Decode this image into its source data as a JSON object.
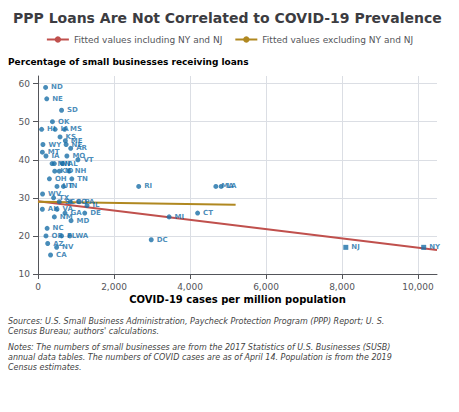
{
  "chart_data": {
    "type": "scatter",
    "title": "PPP Loans Are Not Correlated to COVID-19 Prevalence",
    "xlabel": "COVID-19 cases per million population",
    "ylabel": "Percentage of small businesses receiving loans",
    "annotations": [
      "Sources: U.S. Small Business Administration, Paycheck Protection Program (PPP) Report; U. S.\nCensus Bureau; authors' calculations.",
      "Notes: The numbers of small businesses are from the 2017 Statistics of U.S. Businesses (SUSB)\nannual data tables. The numbers of COVID cases are as of April 14. Population is from the 2019\nCensus estimates."
    ],
    "xlim": [
      0,
      10500
    ],
    "ylim": [
      10,
      62
    ],
    "xticks": [
      0,
      {
        "value": 2000,
        "label": "2,000"
      },
      {
        "value": 4000,
        "label": "4,000"
      },
      {
        "value": 6000,
        "label": "6,000"
      },
      {
        "value": 8000,
        "label": "8,000"
      },
      {
        "value": 10000,
        "label": "10,000"
      }
    ],
    "yticks": [
      10,
      20,
      30,
      40,
      50,
      60
    ],
    "grid": true,
    "legend": "top",
    "series": [
      {
        "type": "scatter",
        "color": "#1a6fa8",
        "labels": [
          "ND",
          "NE",
          "SD",
          "OK",
          "HI",
          "IA",
          "MS",
          "KS",
          "ME",
          "WY",
          "NE",
          "AR",
          "MT",
          "MO",
          "IA",
          "VT",
          "MN",
          "WI",
          "AL",
          "KY",
          "ID",
          "NH",
          "OH",
          "TN",
          "IN",
          "UT",
          "RI",
          "MA",
          "LA",
          "WV",
          "TX",
          "SC",
          "CO",
          "PA",
          "IL",
          "AK",
          "VA",
          "GA",
          "DE",
          "CT",
          "MI",
          "NM",
          "MD",
          "NC",
          "DC",
          "OR",
          "FL",
          "WA",
          "NJ",
          "AZ",
          "NV",
          "NY",
          "CA"
        ],
        "markers": [
          "circle",
          "circle",
          "circle",
          "circle",
          "circle",
          "circle",
          "circle",
          "circle",
          "circle",
          "circle",
          "circle",
          "circle",
          "circle",
          "circle",
          "circle",
          "circle",
          "circle",
          "circle",
          "circle",
          "circle",
          "circle",
          "circle",
          "circle",
          "circle",
          "circle",
          "circle",
          "circle",
          "circle",
          "circle",
          "circle",
          "circle",
          "circle",
          "circle",
          "circle",
          "circle",
          "circle",
          "circle",
          "circle",
          "circle",
          "circle",
          "circle",
          "circle",
          "circle",
          "circle",
          "circle",
          "circle",
          "circle",
          "circle",
          "square",
          "circle",
          "circle",
          "square",
          "circle"
        ],
        "x": [
          200,
          230,
          620,
          380,
          95,
          450,
          700,
          580,
          720,
          130,
          740,
          860,
          115,
          760,
          210,
          1050,
          370,
          430,
          640,
          440,
          560,
          820,
          300,
          890,
          670,
          500,
          2650,
          4680,
          4820,
          120,
          410,
          560,
          850,
          1080,
          1290,
          115,
          500,
          710,
          1230,
          4200,
          3450,
          430,
          870,
          240,
          2980,
          210,
          620,
          840,
          8100,
          255,
          490,
          10150,
          330
        ],
        "values": [
          59,
          56,
          53,
          50,
          48,
          48,
          48,
          46,
          45,
          44,
          44,
          43,
          42,
          41,
          41,
          40,
          39,
          39,
          39,
          37,
          37,
          37,
          35,
          35,
          33,
          33,
          33,
          33,
          33,
          31,
          30,
          29,
          29,
          29,
          28,
          27,
          27,
          26,
          26,
          26,
          25,
          25,
          24,
          22,
          19,
          20,
          20,
          20,
          17,
          18,
          17,
          17,
          15
        ]
      },
      {
        "type": "line",
        "name": "Fitted values including NY and NJ",
        "color": "#c0504d",
        "x": [
          0,
          10500
        ],
        "values": [
          29.1,
          16.3
        ]
      },
      {
        "type": "line",
        "name": "Fitted values excluding NY and NJ",
        "color": "#b08820",
        "x": [
          0,
          5200
        ],
        "values": [
          29.0,
          28.2
        ]
      }
    ]
  }
}
